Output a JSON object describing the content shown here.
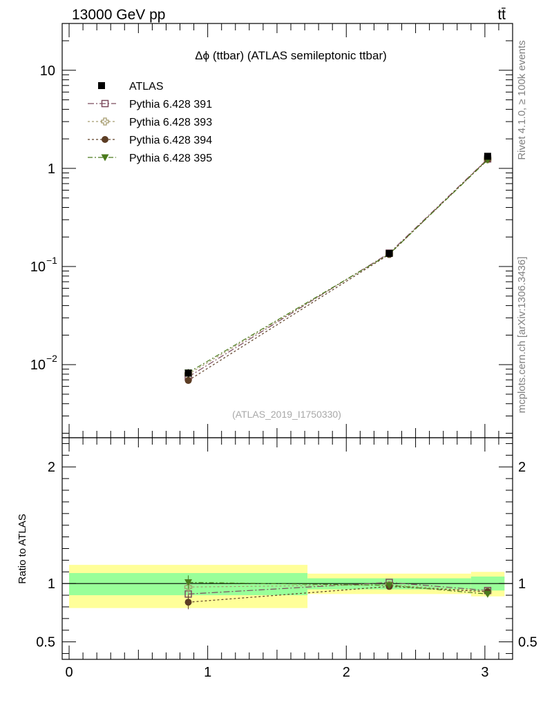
{
  "header": {
    "beam": "13000 GeV pp",
    "process": "tt̄"
  },
  "side_labels": {
    "rivet": "Rivet 4.1.0, ≥ 100k events",
    "mcplots": "mcplots.cern.ch [arXiv:1306.3436]"
  },
  "chart_data": {
    "type": "line",
    "title": "Δϕ (ttbar) (ATLAS semileptonic ttbar)",
    "watermark": "(ATLAS_2019_I1750330)",
    "x_bins": [
      [
        0.0,
        1.72
      ],
      [
        1.72,
        2.9
      ],
      [
        2.9,
        3.1416
      ]
    ],
    "x_centers": [
      0.86,
      2.31,
      3.02
    ],
    "xlim": [
      -0.05,
      3.2
    ],
    "x_ticks": [
      "0",
      "1",
      "2",
      "3"
    ],
    "main": {
      "yscale": "log",
      "ylim": [
        0.0018,
        30
      ],
      "y_ticks": [
        {
          "value": 10,
          "base": "10",
          "exp": ""
        },
        {
          "value": 1,
          "base": "1",
          "exp": ""
        },
        {
          "value": 0.1,
          "base": "10",
          "exp": "−1"
        },
        {
          "value": 0.01,
          "base": "10",
          "exp": "−2"
        }
      ],
      "atlas": {
        "name": "ATLAS",
        "values": [
          0.0082,
          0.136,
          1.33
        ],
        "errors": [
          0.0008,
          0.006,
          0.05
        ]
      },
      "series": [
        {
          "name": "Pythia 6.428 391",
          "values": [
            0.0075,
            0.137,
            1.25
          ],
          "color": "#7b4a5c",
          "marker": "open-square",
          "dash": "9,3,2,3"
        },
        {
          "name": "Pythia 6.428 393",
          "values": [
            0.008,
            0.134,
            1.24
          ],
          "color": "#a49a6c",
          "marker": "open-cross",
          "dash": "3,3"
        },
        {
          "name": "Pythia 6.428 394",
          "values": [
            0.0069,
            0.133,
            1.24
          ],
          "color": "#5c3d24",
          "marker": "filled-circle",
          "dash": "3,3"
        },
        {
          "name": "Pythia 6.428 395",
          "values": [
            0.0083,
            0.134,
            1.22
          ],
          "color": "#4a7a1c",
          "marker": "filled-triangle-down",
          "dash": "7,3,2,3"
        }
      ]
    },
    "ratio": {
      "ylabel": "Ratio to ATLAS",
      "ylim": [
        0.35,
        2.25
      ],
      "y_ticks": [
        "2",
        "1",
        "0.5"
      ],
      "y_tick_values": [
        2,
        1,
        0.5
      ],
      "bands_outer": [
        [
          0.79,
          1.16
        ],
        [
          0.91,
          1.085
        ],
        [
          0.89,
          1.1
        ]
      ],
      "bands_inner": [
        [
          0.9,
          1.09
        ],
        [
          0.95,
          1.045
        ],
        [
          0.94,
          1.06
        ]
      ],
      "series_values": [
        [
          0.91,
          1.01,
          0.94
        ],
        [
          0.97,
          0.99,
          0.93
        ],
        [
          0.84,
          0.975,
          0.93
        ],
        [
          1.01,
          0.985,
          0.91
        ]
      ],
      "series_errors": [
        0.06,
        0.01,
        0.01
      ]
    }
  }
}
